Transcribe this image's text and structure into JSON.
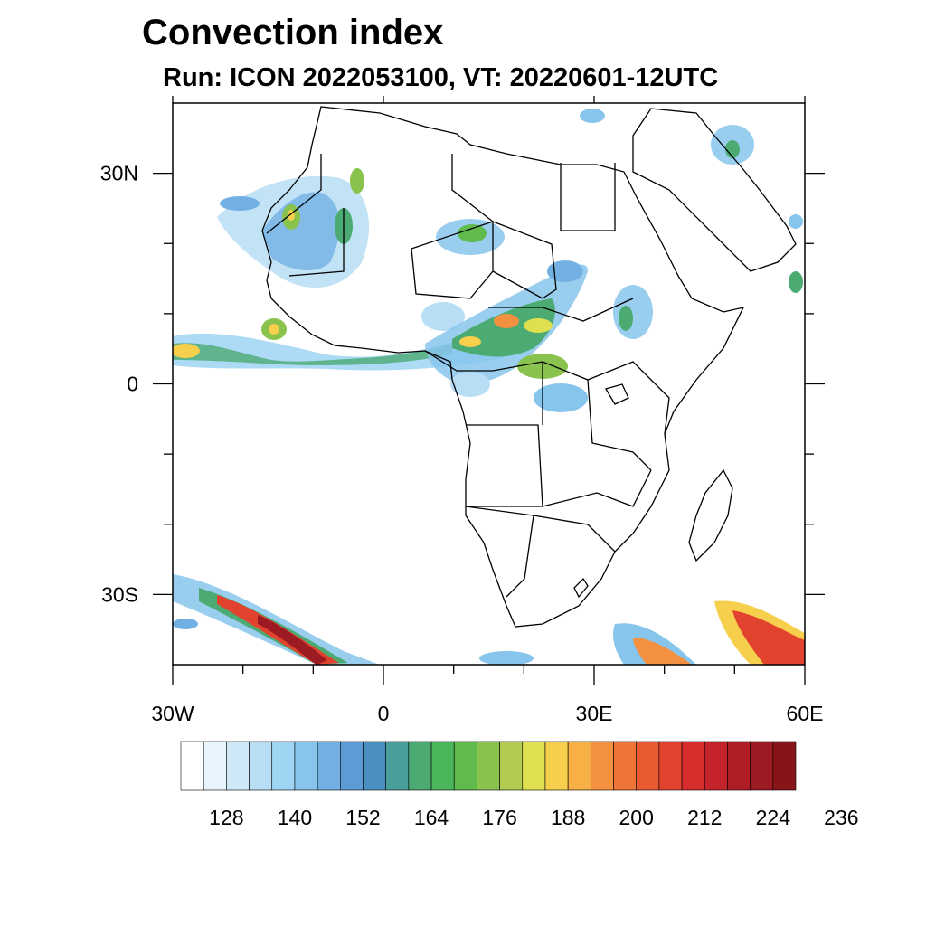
{
  "title": "Convection index",
  "subtitle": "Run: ICON 2022053100,  VT: 20220601-12UTC",
  "map": {
    "lon_range": [
      -30,
      60
    ],
    "lat_range": [
      -40,
      40
    ],
    "lon_ticks": [
      {
        "value": -30,
        "label": "30W"
      },
      {
        "value": 0,
        "label": "0"
      },
      {
        "value": 30,
        "label": "30E"
      },
      {
        "value": 60,
        "label": "60E"
      }
    ],
    "lat_ticks": [
      {
        "value": 30,
        "label": "30N"
      },
      {
        "value": 0,
        "label": "0"
      },
      {
        "value": -30,
        "label": "30S"
      }
    ],
    "minor_lon": [
      -20,
      -10,
      10,
      20,
      40,
      50
    ],
    "minor_lat": [
      20,
      10,
      -10,
      -20
    ]
  },
  "colorbar": {
    "colors": [
      "#ffffff",
      "#e8f4fb",
      "#cfe8f7",
      "#b7def5",
      "#9fd4f3",
      "#87c5ec",
      "#72b0e3",
      "#5d9bd6",
      "#4a8fc2",
      "#4a9e9a",
      "#4caa73",
      "#4bb55a",
      "#5fbb4c",
      "#8ac24e",
      "#b3cc4f",
      "#dfe04f",
      "#f6cf4d",
      "#f6b046",
      "#f39140",
      "#ee7438",
      "#e85a32",
      "#e2432e",
      "#d72d2c",
      "#c5232a",
      "#b01d25",
      "#9c1a21",
      "#861418"
    ],
    "tick_labels": [
      "128",
      "140",
      "152",
      "164",
      "176",
      "188",
      "200",
      "212",
      "224",
      "236"
    ]
  }
}
